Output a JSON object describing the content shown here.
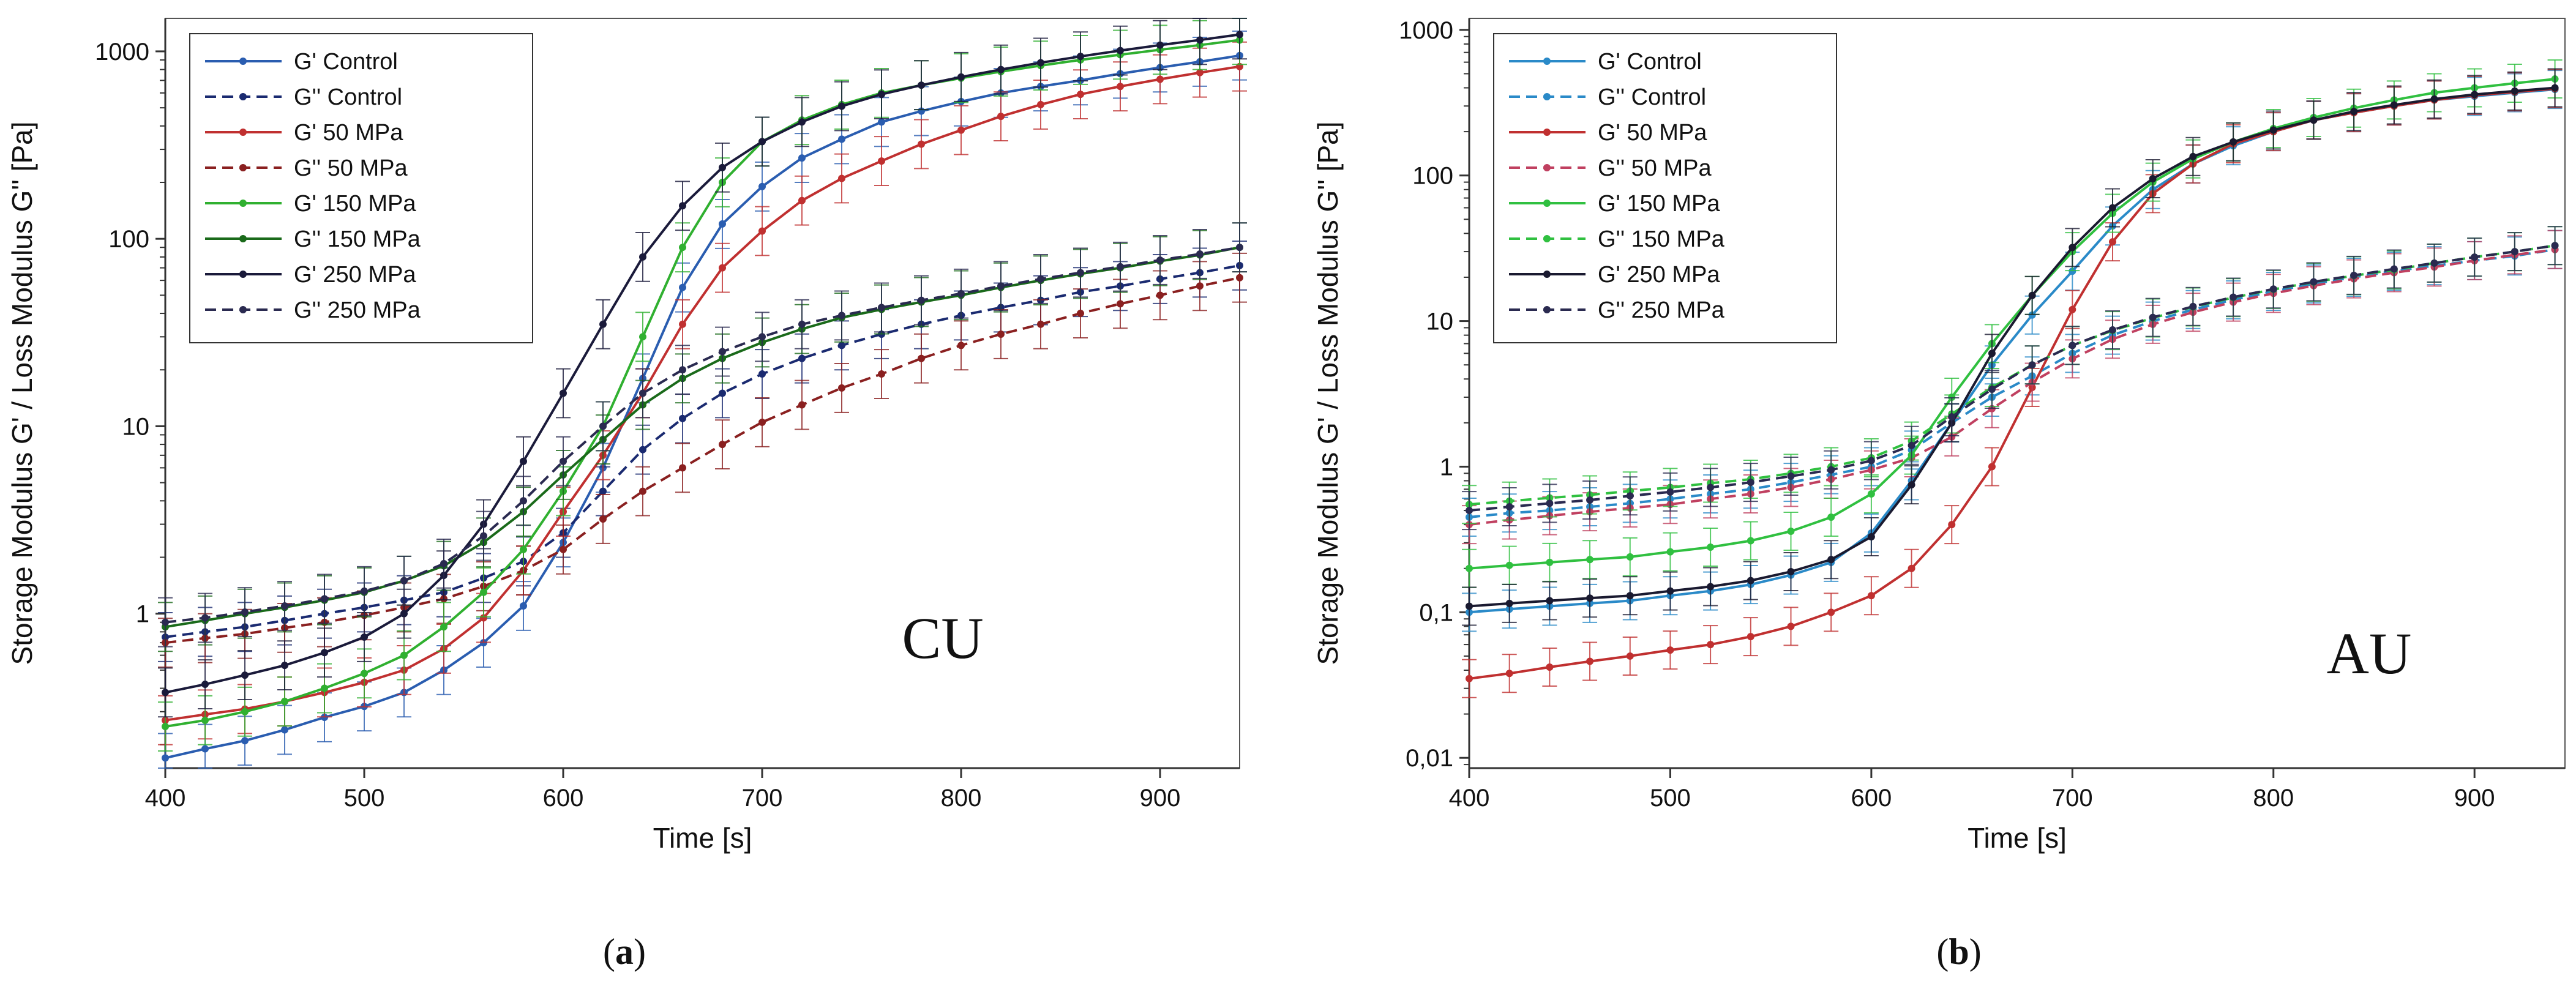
{
  "chart_data": [
    {
      "type": "line",
      "panel": "a",
      "caption": "(a)",
      "annotation": "CU",
      "xlabel": "Time [s]",
      "ylabel": "Storage Modulus G' / Loss Modulus G'' [Pa]",
      "xlim": [
        400,
        940
      ],
      "ylim": [
        0.15,
        1500
      ],
      "yscale": "log",
      "xticks": [
        400,
        500,
        600,
        700,
        800,
        900
      ],
      "yticks": [
        1,
        10,
        100,
        1000
      ],
      "ytick_labels": [
        "1",
        "10",
        "100",
        "1000"
      ],
      "legend_position": "top-left",
      "grid": false,
      "series": [
        {
          "name": "G' Control",
          "color": "#2a5db0",
          "dash": false,
          "x": [
            400,
            420,
            440,
            460,
            480,
            500,
            520,
            540,
            560,
            580,
            600,
            620,
            640,
            660,
            680,
            700,
            720,
            740,
            760,
            780,
            800,
            820,
            840,
            860,
            880,
            900,
            920,
            940
          ],
          "y": [
            0.17,
            0.19,
            0.21,
            0.24,
            0.28,
            0.32,
            0.38,
            0.5,
            0.7,
            1.1,
            2.4,
            6,
            18,
            55,
            120,
            190,
            270,
            340,
            420,
            480,
            540,
            600,
            650,
            700,
            760,
            820,
            880,
            950
          ]
        },
        {
          "name": "G'' Control",
          "color": "#1a2a70",
          "dash": true,
          "x": [
            400,
            420,
            440,
            460,
            480,
            500,
            520,
            540,
            560,
            580,
            600,
            620,
            640,
            660,
            680,
            700,
            720,
            740,
            760,
            780,
            800,
            820,
            840,
            860,
            880,
            900,
            920,
            940
          ],
          "y": [
            0.75,
            0.8,
            0.85,
            0.92,
            1.0,
            1.08,
            1.18,
            1.3,
            1.55,
            1.9,
            2.7,
            4.5,
            7.5,
            11,
            15,
            19,
            23,
            27,
            31,
            35,
            39,
            43,
            47,
            52,
            56,
            61,
            66,
            72
          ]
        },
        {
          "name": "G' 50 MPa",
          "color": "#c03030",
          "dash": false,
          "x": [
            400,
            420,
            440,
            460,
            480,
            500,
            520,
            540,
            560,
            580,
            600,
            620,
            640,
            660,
            680,
            700,
            720,
            740,
            760,
            780,
            800,
            820,
            840,
            860,
            880,
            900,
            920,
            940
          ],
          "y": [
            0.27,
            0.29,
            0.31,
            0.34,
            0.38,
            0.43,
            0.5,
            0.65,
            0.95,
            1.7,
            3.5,
            7,
            15,
            35,
            70,
            110,
            160,
            210,
            260,
            320,
            380,
            450,
            520,
            590,
            650,
            710,
            770,
            830
          ]
        },
        {
          "name": "G'' 50 MPa",
          "color": "#8a2020",
          "dash": true,
          "x": [
            400,
            420,
            440,
            460,
            480,
            500,
            520,
            540,
            560,
            580,
            600,
            620,
            640,
            660,
            680,
            700,
            720,
            740,
            760,
            780,
            800,
            820,
            840,
            860,
            880,
            900,
            920,
            940
          ],
          "y": [
            0.7,
            0.74,
            0.78,
            0.84,
            0.9,
            0.98,
            1.08,
            1.2,
            1.4,
            1.7,
            2.2,
            3.2,
            4.5,
            6.0,
            8.0,
            10.5,
            13,
            16,
            19,
            23,
            27,
            31,
            35,
            40,
            45,
            50,
            56,
            62
          ]
        },
        {
          "name": "G' 150 MPa",
          "color": "#30b030",
          "dash": false,
          "x": [
            400,
            420,
            440,
            460,
            480,
            500,
            520,
            540,
            560,
            580,
            600,
            620,
            640,
            660,
            680,
            700,
            720,
            740,
            760,
            780,
            800,
            820,
            840,
            860,
            880,
            900,
            920,
            940
          ],
          "y": [
            0.25,
            0.27,
            0.3,
            0.34,
            0.4,
            0.48,
            0.6,
            0.85,
            1.3,
            2.2,
            4.5,
            10,
            30,
            90,
            200,
            330,
            430,
            520,
            600,
            660,
            720,
            780,
            840,
            900,
            960,
            1020,
            1080,
            1150
          ]
        },
        {
          "name": "G'' 150 MPa",
          "color": "#1a6a1a",
          "dash": false,
          "x": [
            400,
            420,
            440,
            460,
            480,
            500,
            520,
            540,
            560,
            580,
            600,
            620,
            640,
            660,
            680,
            700,
            720,
            740,
            760,
            780,
            800,
            820,
            840,
            860,
            880,
            900,
            920,
            940
          ],
          "y": [
            0.85,
            0.92,
            1.0,
            1.08,
            1.18,
            1.3,
            1.5,
            1.8,
            2.4,
            3.5,
            5.5,
            8.5,
            13,
            18,
            23,
            28,
            33,
            38,
            42,
            46,
            50,
            55,
            60,
            65,
            70,
            76,
            82,
            90
          ]
        },
        {
          "name": "G' 250 MPa",
          "color": "#1a1a3a",
          "dash": false,
          "x": [
            400,
            420,
            440,
            460,
            480,
            500,
            520,
            540,
            560,
            580,
            600,
            620,
            640,
            660,
            680,
            700,
            720,
            740,
            760,
            780,
            800,
            820,
            840,
            860,
            880,
            900,
            920,
            940
          ],
          "y": [
            0.38,
            0.42,
            0.47,
            0.53,
            0.62,
            0.75,
            1.0,
            1.6,
            3.0,
            6.5,
            15,
            35,
            80,
            150,
            240,
            330,
            420,
            510,
            590,
            660,
            730,
            800,
            870,
            940,
            1010,
            1080,
            1150,
            1230
          ]
        },
        {
          "name": "G'' 250 MPa",
          "color": "#2a2a50",
          "dash": true,
          "x": [
            400,
            420,
            440,
            460,
            480,
            500,
            520,
            540,
            560,
            580,
            600,
            620,
            640,
            660,
            680,
            700,
            720,
            740,
            760,
            780,
            800,
            820,
            840,
            860,
            880,
            900,
            920,
            940
          ],
          "y": [
            0.9,
            0.95,
            1.02,
            1.1,
            1.2,
            1.32,
            1.5,
            1.85,
            2.6,
            4.0,
            6.5,
            10,
            15,
            20,
            25,
            30,
            35,
            39,
            43,
            47,
            51,
            56,
            61,
            66,
            71,
            77,
            83,
            90
          ]
        }
      ]
    },
    {
      "type": "line",
      "panel": "b",
      "caption": "(b)",
      "annotation": "AU",
      "xlabel": "Time [s]",
      "ylabel": "Storage Modulus G' / Loss Modulus G'' [Pa]",
      "xlim": [
        400,
        945
      ],
      "ylim": [
        0.0085,
        1200
      ],
      "yscale": "log",
      "xticks": [
        400,
        500,
        600,
        700,
        800,
        900
      ],
      "yticks": [
        0.01,
        0.1,
        1,
        10,
        100,
        1000
      ],
      "ytick_labels": [
        "0,01",
        "0,1",
        "1",
        "10",
        "100",
        "1000"
      ],
      "legend_position": "top-left",
      "grid": false,
      "series": [
        {
          "name": "G' Control",
          "color": "#2a8ac8",
          "dash": false,
          "x": [
            400,
            420,
            440,
            460,
            480,
            500,
            520,
            540,
            560,
            580,
            600,
            620,
            640,
            660,
            680,
            700,
            720,
            740,
            760,
            780,
            800,
            820,
            840,
            860,
            880,
            900,
            920,
            940
          ],
          "y": [
            0.1,
            0.105,
            0.11,
            0.115,
            0.12,
            0.13,
            0.14,
            0.155,
            0.18,
            0.22,
            0.35,
            0.8,
            2.0,
            5.0,
            11,
            22,
            45,
            80,
            120,
            160,
            200,
            240,
            270,
            300,
            330,
            350,
            370,
            390
          ]
        },
        {
          "name": "G'' Control",
          "color": "#2a8ac8",
          "dash": true,
          "x": [
            400,
            420,
            440,
            460,
            480,
            500,
            520,
            540,
            560,
            580,
            600,
            620,
            640,
            660,
            680,
            700,
            720,
            740,
            760,
            780,
            800,
            820,
            840,
            860,
            880,
            900,
            920,
            940
          ],
          "y": [
            0.45,
            0.48,
            0.5,
            0.53,
            0.56,
            0.6,
            0.65,
            0.7,
            0.78,
            0.88,
            1.0,
            1.3,
            2.0,
            3.0,
            4.2,
            6.0,
            8.0,
            10,
            12,
            14,
            16,
            18,
            20,
            22,
            24,
            26,
            28,
            31
          ]
        },
        {
          "name": "G' 50 MPa",
          "color": "#c03030",
          "dash": false,
          "x": [
            400,
            420,
            440,
            460,
            480,
            500,
            520,
            540,
            560,
            580,
            600,
            620,
            640,
            660,
            680,
            700,
            720,
            740,
            760,
            780,
            800,
            820,
            840,
            860,
            880,
            900,
            920,
            940
          ],
          "y": [
            0.035,
            0.038,
            0.042,
            0.046,
            0.05,
            0.055,
            0.06,
            0.068,
            0.08,
            0.1,
            0.13,
            0.2,
            0.4,
            1.0,
            3.5,
            12,
            35,
            75,
            120,
            165,
            200,
            240,
            270,
            300,
            330,
            355,
            375,
            395
          ]
        },
        {
          "name": "G'' 50 MPa",
          "color": "#c04060",
          "dash": true,
          "x": [
            400,
            420,
            440,
            460,
            480,
            500,
            520,
            540,
            560,
            580,
            600,
            620,
            640,
            660,
            680,
            700,
            720,
            740,
            760,
            780,
            800,
            820,
            840,
            860,
            880,
            900,
            920,
            940
          ],
          "y": [
            0.4,
            0.43,
            0.46,
            0.49,
            0.52,
            0.55,
            0.6,
            0.65,
            0.72,
            0.82,
            0.95,
            1.15,
            1.6,
            2.5,
            3.8,
            5.5,
            7.5,
            9.5,
            11.5,
            13.5,
            15.5,
            17.5,
            19.5,
            21.5,
            23.5,
            26,
            28.5,
            31
          ]
        },
        {
          "name": "G' 150 MPa",
          "color": "#30c040",
          "dash": false,
          "x": [
            400,
            420,
            440,
            460,
            480,
            500,
            520,
            540,
            560,
            580,
            600,
            620,
            640,
            660,
            680,
            700,
            720,
            740,
            760,
            780,
            800,
            820,
            840,
            860,
            880,
            900,
            920,
            940
          ],
          "y": [
            0.2,
            0.21,
            0.22,
            0.23,
            0.24,
            0.26,
            0.28,
            0.31,
            0.36,
            0.45,
            0.65,
            1.2,
            3.0,
            7.0,
            15,
            30,
            55,
            90,
            130,
            170,
            210,
            250,
            290,
            330,
            370,
            400,
            430,
            460
          ]
        },
        {
          "name": "G'' 150 MPa",
          "color": "#30c040",
          "dash": true,
          "x": [
            400,
            420,
            440,
            460,
            480,
            500,
            520,
            540,
            560,
            580,
            600,
            620,
            640,
            660,
            680,
            700,
            720,
            740,
            760,
            780,
            800,
            820,
            840,
            860,
            880,
            900,
            920,
            940
          ],
          "y": [
            0.55,
            0.58,
            0.61,
            0.64,
            0.68,
            0.72,
            0.77,
            0.82,
            0.9,
            1.0,
            1.15,
            1.5,
            2.3,
            3.5,
            5.0,
            6.8,
            8.6,
            10.5,
            12.5,
            14.5,
            16.5,
            18.5,
            20.5,
            22.5,
            25,
            27.5,
            30,
            33
          ]
        },
        {
          "name": "G' 250 MPa",
          "color": "#1a1a30",
          "dash": false,
          "x": [
            400,
            420,
            440,
            460,
            480,
            500,
            520,
            540,
            560,
            580,
            600,
            620,
            640,
            660,
            680,
            700,
            720,
            740,
            760,
            780,
            800,
            820,
            840,
            860,
            880,
            900,
            920,
            940
          ],
          "y": [
            0.11,
            0.115,
            0.12,
            0.125,
            0.13,
            0.14,
            0.15,
            0.165,
            0.19,
            0.23,
            0.33,
            0.75,
            2.0,
            6.0,
            15,
            32,
            60,
            95,
            135,
            170,
            205,
            240,
            275,
            305,
            335,
            360,
            380,
            400
          ]
        },
        {
          "name": "G'' 250 MPa",
          "color": "#2a2a50",
          "dash": true,
          "x": [
            400,
            420,
            440,
            460,
            480,
            500,
            520,
            540,
            560,
            580,
            600,
            620,
            640,
            660,
            680,
            700,
            720,
            740,
            760,
            780,
            800,
            820,
            840,
            860,
            880,
            900,
            920,
            940
          ],
          "y": [
            0.5,
            0.53,
            0.56,
            0.59,
            0.63,
            0.67,
            0.72,
            0.78,
            0.86,
            0.95,
            1.1,
            1.4,
            2.2,
            3.4,
            5.0,
            6.8,
            8.7,
            10.6,
            12.6,
            14.6,
            16.6,
            18.6,
            20.6,
            22.8,
            25,
            27.5,
            30,
            33
          ]
        }
      ]
    }
  ]
}
